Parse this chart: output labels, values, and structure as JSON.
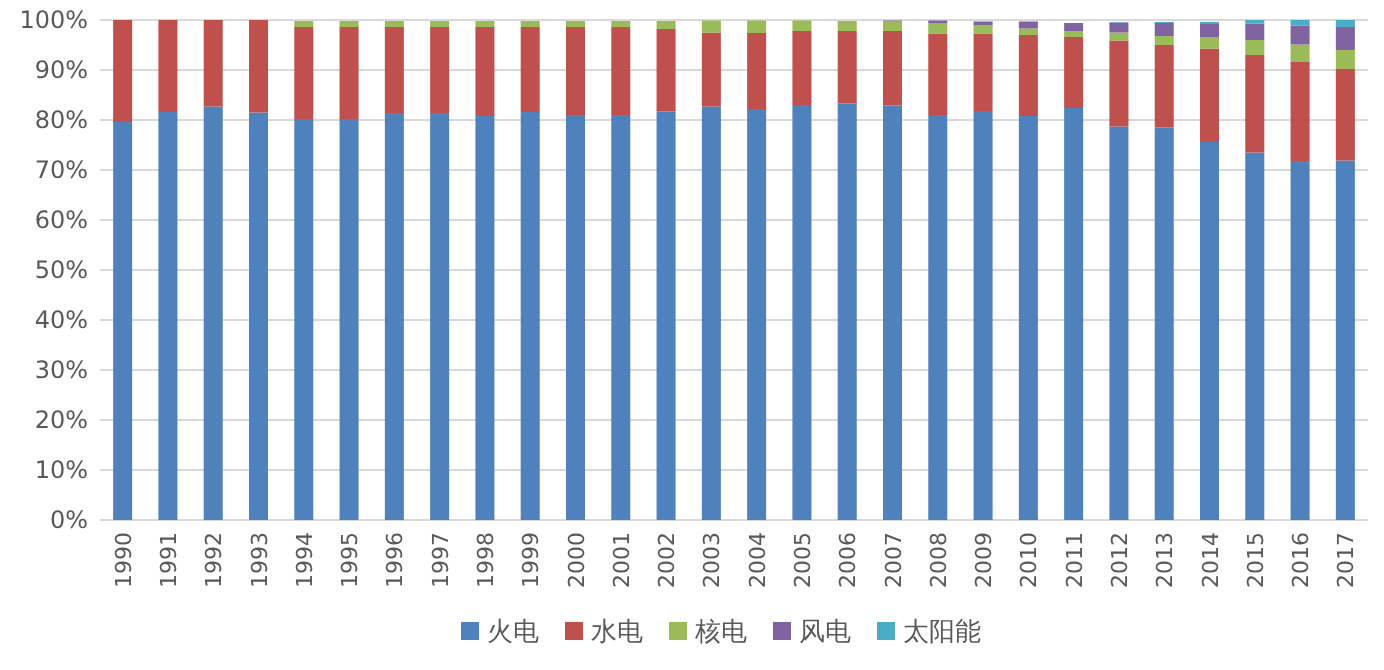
{
  "chart_data": {
    "type": "bar",
    "stacked": true,
    "categories": [
      "1990",
      "1991",
      "1992",
      "1993",
      "1994",
      "1995",
      "1996",
      "1997",
      "1998",
      "1999",
      "2000",
      "2001",
      "2002",
      "2003",
      "2004",
      "2005",
      "2006",
      "2007",
      "2008",
      "2009",
      "2010",
      "2011",
      "2012",
      "2013",
      "2014",
      "2015",
      "2016",
      "2017"
    ],
    "series": [
      {
        "name": "火电",
        "color": "#4f81bd",
        "values": [
          79.6,
          81.6,
          82.7,
          81.5,
          80.2,
          80.2,
          81.4,
          81.4,
          80.8,
          81.6,
          81.0,
          81.0,
          81.7,
          82.7,
          82.2,
          83.0,
          83.3,
          82.9,
          81.0,
          81.8,
          80.8,
          82.4,
          78.7,
          78.5,
          75.6,
          73.5,
          71.8,
          71.9
        ]
      },
      {
        "name": "水电",
        "color": "#c0504d",
        "values": [
          20.4,
          18.4,
          17.3,
          18.5,
          18.4,
          18.4,
          17.2,
          17.2,
          17.8,
          17.0,
          17.6,
          17.6,
          16.5,
          14.8,
          15.2,
          14.8,
          14.5,
          14.9,
          16.3,
          15.5,
          16.2,
          14.2,
          17.2,
          16.5,
          18.7,
          19.5,
          19.8,
          18.3
        ]
      },
      {
        "name": "核电",
        "color": "#9bbb59",
        "values": [
          0,
          0,
          0,
          0,
          1.2,
          1.2,
          1.2,
          1.2,
          1.2,
          1.2,
          1.2,
          1.2,
          1.6,
          2.4,
          2.5,
          2.1,
          2.0,
          1.9,
          2.0,
          1.6,
          1.3,
          1.2,
          1.6,
          1.8,
          2.2,
          3.0,
          3.5,
          3.8
        ]
      },
      {
        "name": "风电",
        "color": "#8064a2",
        "values": [
          0,
          0,
          0,
          0,
          0,
          0,
          0,
          0,
          0,
          0,
          0,
          0,
          0,
          0,
          0,
          0,
          0,
          0.2,
          0.6,
          0.8,
          1.4,
          1.6,
          2.0,
          2.6,
          2.7,
          3.3,
          3.8,
          4.6
        ]
      },
      {
        "name": "太阳能",
        "color": "#4bacc6",
        "values": [
          0,
          0,
          0,
          0,
          0,
          0,
          0,
          0,
          0,
          0,
          0,
          0,
          0,
          0,
          0,
          0,
          0,
          0,
          0,
          0,
          0,
          0,
          0.1,
          0.2,
          0.4,
          0.7,
          1.1,
          1.4
        ]
      }
    ],
    "ylim": [
      0,
      100
    ],
    "yticks": [
      {
        "value": 0,
        "label": "0%"
      },
      {
        "value": 10,
        "label": "10%"
      },
      {
        "value": 20,
        "label": "20%"
      },
      {
        "value": 30,
        "label": "30%"
      },
      {
        "value": 40,
        "label": "40%"
      },
      {
        "value": 50,
        "label": "50%"
      },
      {
        "value": 60,
        "label": "60%"
      },
      {
        "value": 70,
        "label": "70%"
      },
      {
        "value": 80,
        "label": "80%"
      },
      {
        "value": 90,
        "label": "90%"
      },
      {
        "value": 100,
        "label": "100%"
      }
    ],
    "grid": "y",
    "legend": "bottom"
  }
}
